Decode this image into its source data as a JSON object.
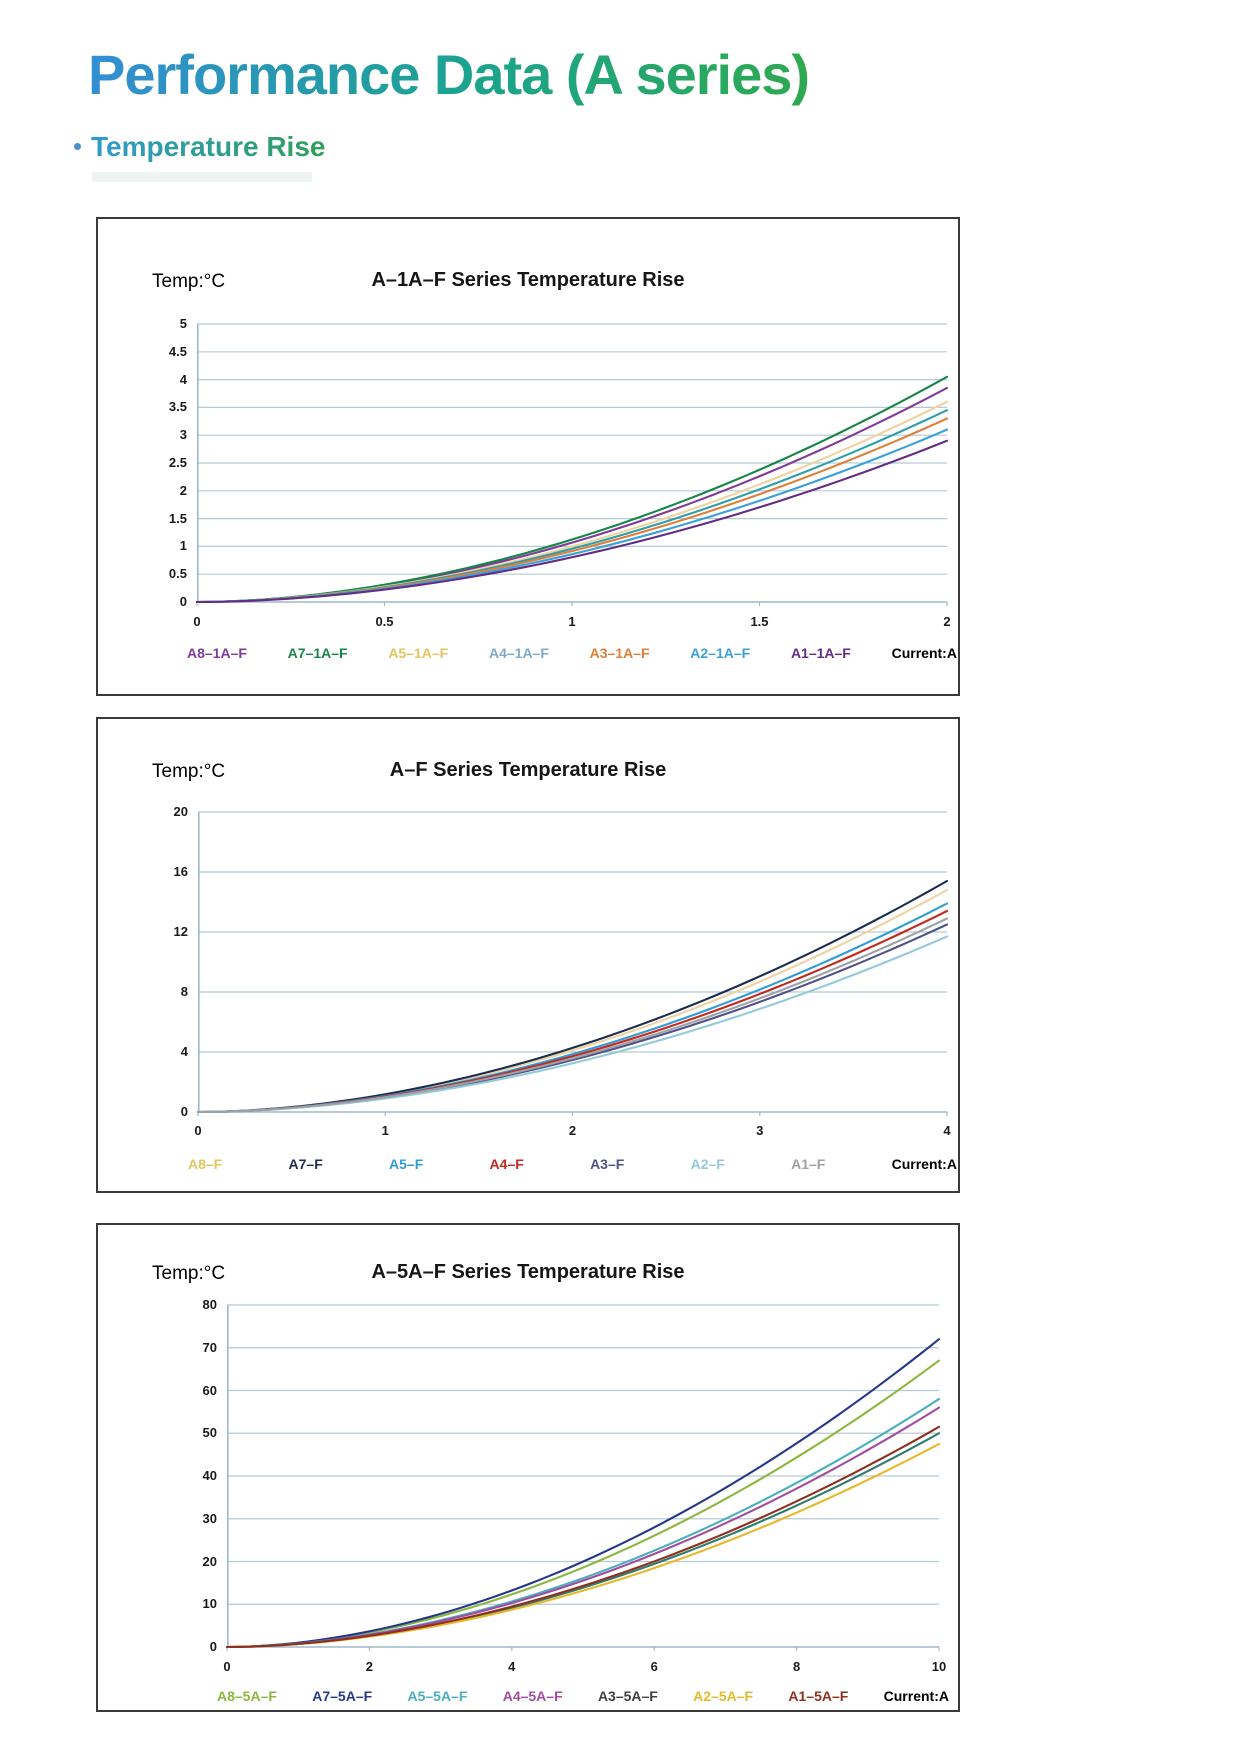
{
  "page": {
    "title": "Performance Data (A series)",
    "bullet": "Temperature Rise"
  },
  "colors": {
    "title_gradient_start": "#338ed3",
    "title_gradient_end": "#2ea94f",
    "grid": "#b5cad6",
    "axis_spine": "#9fb8cc",
    "card_border": "#3a3a3a",
    "current_label": "#000000"
  },
  "chart_data": [
    {
      "type": "line",
      "title": "A–1A–F Series Temperature Rise",
      "ylabel": "Temp:°C",
      "xlabel": "Current:A",
      "xlim": [
        0,
        2
      ],
      "ylim": [
        0,
        5
      ],
      "x_ticks": [
        0,
        0.5,
        1,
        1.5,
        2
      ],
      "y_ticks": [
        0,
        0.5,
        1,
        1.5,
        2,
        2.5,
        3,
        3.5,
        4,
        4.5,
        5
      ],
      "grid": true,
      "legend_position": "bottom",
      "curve_exponent": 1.85,
      "series": [
        {
          "name": "A8–1A–F",
          "color": "#803a98",
          "end_value": 3.85
        },
        {
          "name": "A7–1A–F",
          "color": "#17854a",
          "end_value": 4.05
        },
        {
          "name": "A5–1A–F",
          "color": "#edd3a0",
          "legend_color": "#e3c45f",
          "end_value": 3.6
        },
        {
          "name": "A4–1A–F",
          "color": "#2e9fa9",
          "legend_color": "#7fa9c9",
          "end_value": 3.45
        },
        {
          "name": "A3–1A–F",
          "color": "#e07f3a",
          "end_value": 3.3
        },
        {
          "name": "A2–1A–F",
          "color": "#3ba0d9",
          "end_value": 3.1
        },
        {
          "name": "A1–1A–F",
          "color": "#632d86",
          "end_value": 2.9
        }
      ]
    },
    {
      "type": "line",
      "title": "A–F Series Temperature Rise",
      "ylabel": "Temp:°C",
      "xlabel": "Current:A",
      "xlim": [
        0,
        4
      ],
      "ylim": [
        0,
        20
      ],
      "x_ticks": [
        0,
        1,
        2,
        3,
        4
      ],
      "y_ticks": [
        0,
        4,
        8,
        12,
        16,
        20
      ],
      "grid": true,
      "legend_position": "bottom",
      "curve_exponent": 1.85,
      "series": [
        {
          "name": "A8–F",
          "color": "#edd3a4",
          "legend_color": "#e4c45f",
          "end_value": 14.8
        },
        {
          "name": "A7–F",
          "color": "#1b2c4f",
          "end_value": 15.4
        },
        {
          "name": "A5–F",
          "color": "#2f9cd6",
          "end_value": 13.9
        },
        {
          "name": "A4–F",
          "color": "#c2281e",
          "end_value": 13.4
        },
        {
          "name": "A3–F",
          "color": "#4e5287",
          "end_value": 12.5
        },
        {
          "name": "A2–F",
          "color": "#93c9db",
          "end_value": 11.7
        },
        {
          "name": "A1–F",
          "color": "#9ca1a6",
          "end_value": 12.9
        }
      ]
    },
    {
      "type": "line",
      "title": "A–5A–F Series Temperature Rise",
      "ylabel": "Temp:°C",
      "xlabel": "Current:A",
      "xlim": [
        0,
        10
      ],
      "ylim": [
        0,
        80
      ],
      "x_ticks": [
        0,
        2,
        4,
        6,
        8,
        10
      ],
      "y_ticks": [
        0,
        10,
        20,
        30,
        40,
        50,
        60,
        70,
        80
      ],
      "grid": true,
      "legend_position": "bottom",
      "curve_exponent": 1.85,
      "series": [
        {
          "name": "A8–5A–F",
          "color": "#8cb63e",
          "end_value": 67
        },
        {
          "name": "A7–5A–F",
          "color": "#24388a",
          "end_value": 72
        },
        {
          "name": "A5–5A–F",
          "color": "#49afbd",
          "end_value": 58
        },
        {
          "name": "A4–5A–F",
          "color": "#a14c9f",
          "end_value": 56
        },
        {
          "name": "A3–5A–F",
          "color": "#2f7c6d",
          "legend_color": "#404040",
          "end_value": 50
        },
        {
          "name": "A2–5A–F",
          "color": "#e5b92b",
          "end_value": 47.5
        },
        {
          "name": "A1–5A–F",
          "color": "#8f2f1f",
          "end_value": 51.5
        }
      ]
    }
  ]
}
